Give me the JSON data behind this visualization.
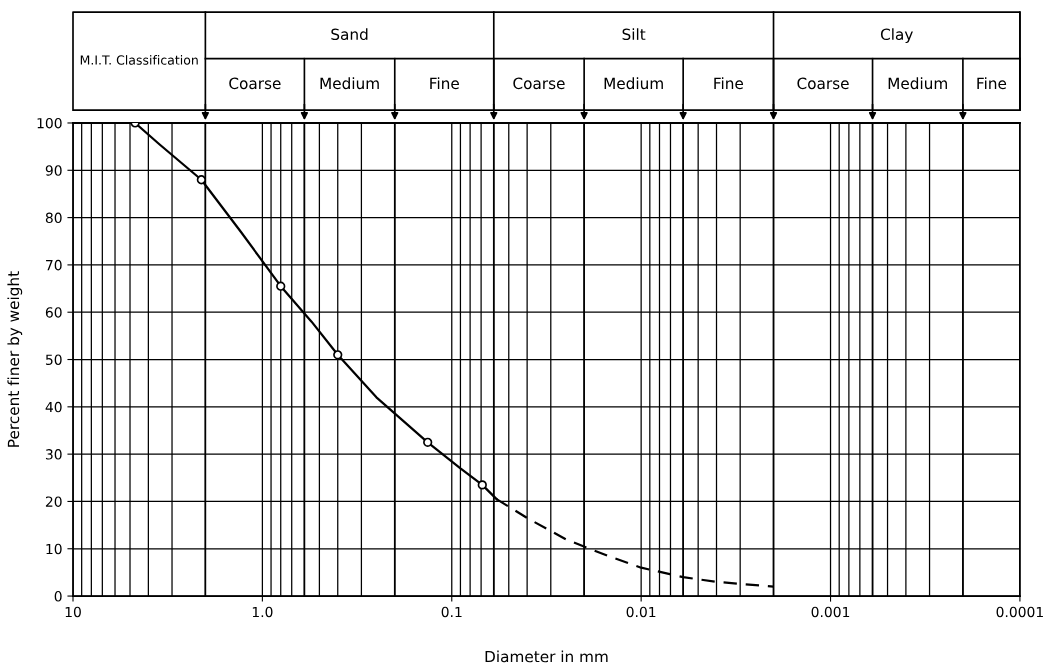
{
  "chart_data": [
    {
      "type": "line",
      "xlabel": "Diameter in mm",
      "ylabel": "Percent finer by weight",
      "log": "x",
      "grid": true,
      "xlim": [
        10,
        0.0001
      ],
      "xticks": [
        10,
        {
          "value": 1,
          "label": "1.0"
        },
        0.1,
        0.01,
        0.001,
        0.0001
      ],
      "ylim": [
        0,
        100
      ],
      "yticks": [
        0,
        10,
        20,
        30,
        40,
        50,
        60,
        70,
        80,
        90,
        100
      ],
      "ref_lines": [
        {
          "axis": "x",
          "value": 2,
          "color": "#000000"
        },
        {
          "axis": "x",
          "value": 0.6,
          "color": "#000000"
        },
        {
          "axis": "x",
          "value": 0.2,
          "color": "#000000"
        },
        {
          "axis": "x",
          "value": 0.06,
          "color": "#000000"
        },
        {
          "axis": "x",
          "value": 0.02,
          "color": "#000000"
        },
        {
          "axis": "x",
          "value": 0.006,
          "color": "#000000"
        },
        {
          "axis": "x",
          "value": 0.002,
          "color": "#000000"
        },
        {
          "axis": "x",
          "value": 0.0006,
          "color": "#000000"
        },
        {
          "axis": "x",
          "value": 0.0002,
          "color": "#000000"
        }
      ],
      "series": [
        {
          "type": "line",
          "color": "#000000",
          "line_style": "solid",
          "marker": "none",
          "x": [
            4.7,
            3.5,
            2.1,
            1.3,
            0.8,
            0.55,
            0.4,
            0.25,
            0.134,
            0.09,
            0.069,
            0.058
          ],
          "values": [
            100,
            95.5,
            88,
            77,
            65.5,
            58,
            51,
            42,
            32.5,
            27,
            23.5,
            20.5
          ]
        },
        {
          "type": "line",
          "color": "#000000",
          "line_style": "dashed",
          "marker": "none",
          "x": [
            0.058,
            0.04,
            0.025,
            0.015,
            0.01,
            0.006,
            0.004,
            0.002
          ],
          "values": [
            20.5,
            16.5,
            12,
            8.5,
            6,
            4,
            3,
            2
          ]
        },
        {
          "type": "scatter",
          "color": "#000000",
          "marker": "circle",
          "x": [
            4.7,
            2.1,
            0.8,
            0.4,
            0.134,
            0.069
          ],
          "values": [
            100,
            88,
            65.5,
            51,
            32.5,
            23.5
          ]
        }
      ]
    },
    {
      "type": "other",
      "annotations": [
        "M.I.T. Classification",
        "Sand",
        "Silt",
        "Clay",
        "Coarse",
        "Medium",
        "Fine",
        "Coarse",
        "Medium",
        "Fine",
        "Coarse",
        "Medium",
        "Fine"
      ]
    }
  ]
}
